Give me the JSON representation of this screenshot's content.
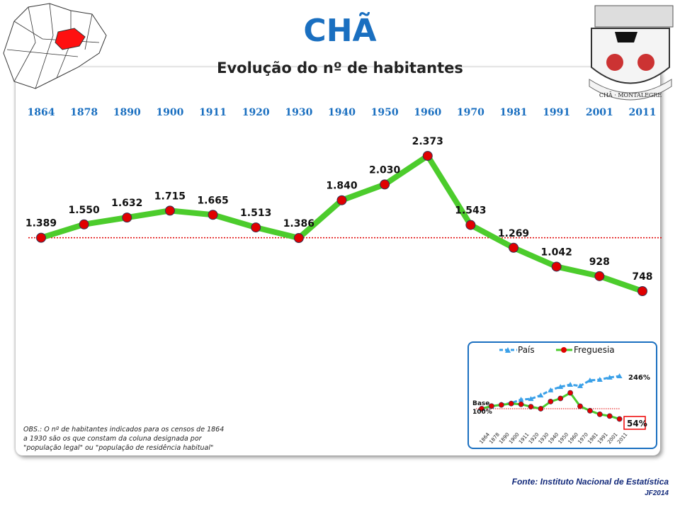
{
  "header": {
    "title": "CHÃ",
    "subtitle": "Evolução do nº de habitantes",
    "crest_text": "CHÃ · MONTALEGRE"
  },
  "colors": {
    "title": "#1a6fc0",
    "line": "#4ccc2c",
    "marker": "#e00000",
    "baseline": "#e00000",
    "pais": "#3aa0e8"
  },
  "chart_data": {
    "type": "line",
    "title": "Evolução do nº de habitantes",
    "categories": [
      "1864",
      "1878",
      "1890",
      "1900",
      "1911",
      "1920",
      "1930",
      "1940",
      "1950",
      "1960",
      "1970",
      "1981",
      "1991",
      "2001",
      "2011"
    ],
    "values": [
      1389,
      1550,
      1632,
      1715,
      1665,
      1513,
      1386,
      1840,
      2030,
      2373,
      1543,
      1269,
      1042,
      928,
      748
    ],
    "labels": [
      "1.389",
      "1.550",
      "1.632",
      "1.715",
      "1.665",
      "1.513",
      "1.386",
      "1.840",
      "2.030",
      "2.373",
      "1.543",
      "1.269",
      "1.042",
      "928",
      "748"
    ],
    "baseline": 1389,
    "inset": {
      "type": "line",
      "legend": [
        "País",
        "Freguesia"
      ],
      "series": [
        {
          "name": "País",
          "values": [
            100,
            110,
            119,
            125,
            141,
            144,
            160,
            183,
            198,
            208,
            202,
            227,
            230,
            240,
            246
          ]
        },
        {
          "name": "Freguesia",
          "values": [
            100,
            112,
            117,
            123,
            120,
            109,
            100,
            132,
            146,
            171,
            111,
            91,
            75,
            67,
            54
          ]
        }
      ],
      "base_label": "Base 100%",
      "end_label_pais": "246%",
      "end_label_freguesia": "54%"
    }
  },
  "notes": {
    "obs": "OBS.: O nº de habitantes indicados para os censos de 1864 a 1930 são os que constam da coluna designada por \"população legal\" ou \"população de residência habitual\"",
    "source": "Fonte: Instituto Nacional de Estatística",
    "credit": "JF2014"
  }
}
